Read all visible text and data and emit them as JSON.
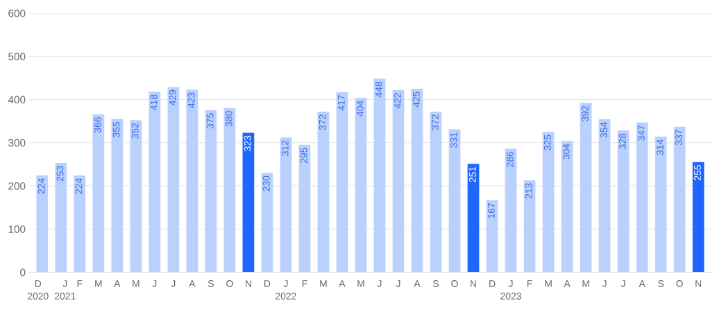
{
  "chart_data": {
    "type": "bar",
    "categories": [
      "D\n2020",
      "J\n2021",
      "F",
      "M",
      "A",
      "M",
      "J",
      "J",
      "A",
      "S",
      "O",
      "N",
      "D",
      "J\n2022",
      "F",
      "M",
      "A",
      "M",
      "J",
      "J",
      "A",
      "S",
      "O",
      "N",
      "D",
      "J\n2023",
      "F",
      "M",
      "A",
      "M",
      "J",
      "J",
      "A",
      "S",
      "O",
      "N"
    ],
    "values": [
      224,
      253,
      224,
      366,
      355,
      352,
      418,
      429,
      423,
      375,
      380,
      323,
      230,
      312,
      295,
      372,
      417,
      404,
      448,
      422,
      425,
      372,
      331,
      251,
      167,
      286,
      213,
      325,
      304,
      392,
      354,
      328,
      347,
      314,
      337,
      255
    ],
    "colors": [
      "#bad1fd",
      "#bad1fd",
      "#bad1fd",
      "#bad1fd",
      "#bad1fd",
      "#bad1fd",
      "#bad1fd",
      "#bad1fd",
      "#bad1fd",
      "#bad1fd",
      "#bad1fd",
      "#1f66fe",
      "#bad1fd",
      "#bad1fd",
      "#bad1fd",
      "#bad1fd",
      "#bad1fd",
      "#bad1fd",
      "#bad1fd",
      "#bad1fd",
      "#bad1fd",
      "#bad1fd",
      "#bad1fd",
      "#1f66fe",
      "#bad1fd",
      "#bad1fd",
      "#bad1fd",
      "#bad1fd",
      "#bad1fd",
      "#bad1fd",
      "#bad1fd",
      "#bad1fd",
      "#bad1fd",
      "#bad1fd",
      "#bad1fd",
      "#1f66fe"
    ],
    "ylim": [
      0,
      600
    ],
    "yticks": [
      0,
      100,
      200,
      300,
      400,
      500,
      600
    ],
    "grid": "y",
    "data_labels": true
  }
}
